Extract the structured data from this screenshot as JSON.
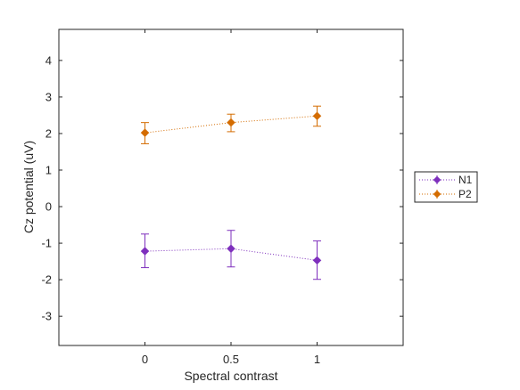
{
  "chart_data": {
    "type": "line",
    "xlabel": "Spectral contrast",
    "ylabel": "Cz potential (uV)",
    "x": [
      0,
      0.5,
      1
    ],
    "x_ticks": [
      0,
      0.5,
      1
    ],
    "x_tick_labels": [
      "0",
      "0.5",
      "1"
    ],
    "y_ticks": [
      -3,
      -2,
      -1,
      0,
      1,
      2,
      3,
      4
    ],
    "y_tick_labels": [
      "-3",
      "-2",
      "-1",
      "0",
      "1",
      "2",
      "3",
      "4"
    ],
    "xlim": [
      -0.5,
      1.5
    ],
    "ylim": [
      -3.8,
      4.85
    ],
    "grid": false,
    "legend_position": "right",
    "series": [
      {
        "name": "N1",
        "color": "#7e2fbd",
        "marker": "diamond",
        "line_style": "dotted",
        "values": [
          -1.22,
          -1.15,
          -1.47
        ],
        "err_low": [
          0.45,
          0.5,
          0.52
        ],
        "err_high": [
          0.47,
          0.5,
          0.53
        ]
      },
      {
        "name": "P2",
        "color": "#d46c00",
        "marker": "diamond",
        "line_style": "dotted",
        "values": [
          2.02,
          2.3,
          2.48
        ],
        "err_low": [
          0.3,
          0.25,
          0.28
        ],
        "err_high": [
          0.28,
          0.23,
          0.27
        ]
      }
    ]
  }
}
